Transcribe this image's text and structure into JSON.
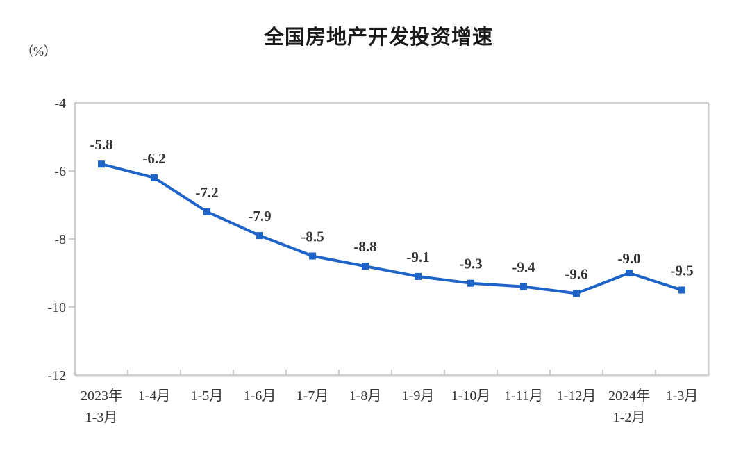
{
  "chart_data": {
    "type": "line",
    "title": "全国房地产开发投资增速",
    "unit_label": "（%）",
    "categories": [
      [
        "2023年",
        "1-3月"
      ],
      [
        "1-4月"
      ],
      [
        "1-5月"
      ],
      [
        "1-6月"
      ],
      [
        "1-7月"
      ],
      [
        "1-8月"
      ],
      [
        "1-9月"
      ],
      [
        "1-10月"
      ],
      [
        "1-11月"
      ],
      [
        "1-12月"
      ],
      [
        "2024年",
        "1-2月"
      ],
      [
        "1-3月"
      ]
    ],
    "values": [
      -5.8,
      -6.2,
      -7.2,
      -7.9,
      -8.5,
      -8.8,
      -9.1,
      -9.3,
      -9.4,
      -9.6,
      -9.0,
      -9.5
    ],
    "data_labels": [
      "-5.8",
      "-6.2",
      "-7.2",
      "-7.9",
      "-8.5",
      "-8.8",
      "-9.1",
      "-9.3",
      "-9.4",
      "-9.6",
      "-9.0",
      "-9.5"
    ],
    "ylim": [
      -12,
      -4
    ],
    "yticks": [
      -4,
      -6,
      -8,
      -10,
      -12
    ],
    "grid": false,
    "legend": "none",
    "marker": "square",
    "colors": {
      "line": "#1e63c8",
      "marker": "#1e63c8",
      "axis": "#bfbfbf",
      "axis_shadow": "#e6e6e6",
      "text": "#333333",
      "title": "#1a1a1a"
    }
  }
}
